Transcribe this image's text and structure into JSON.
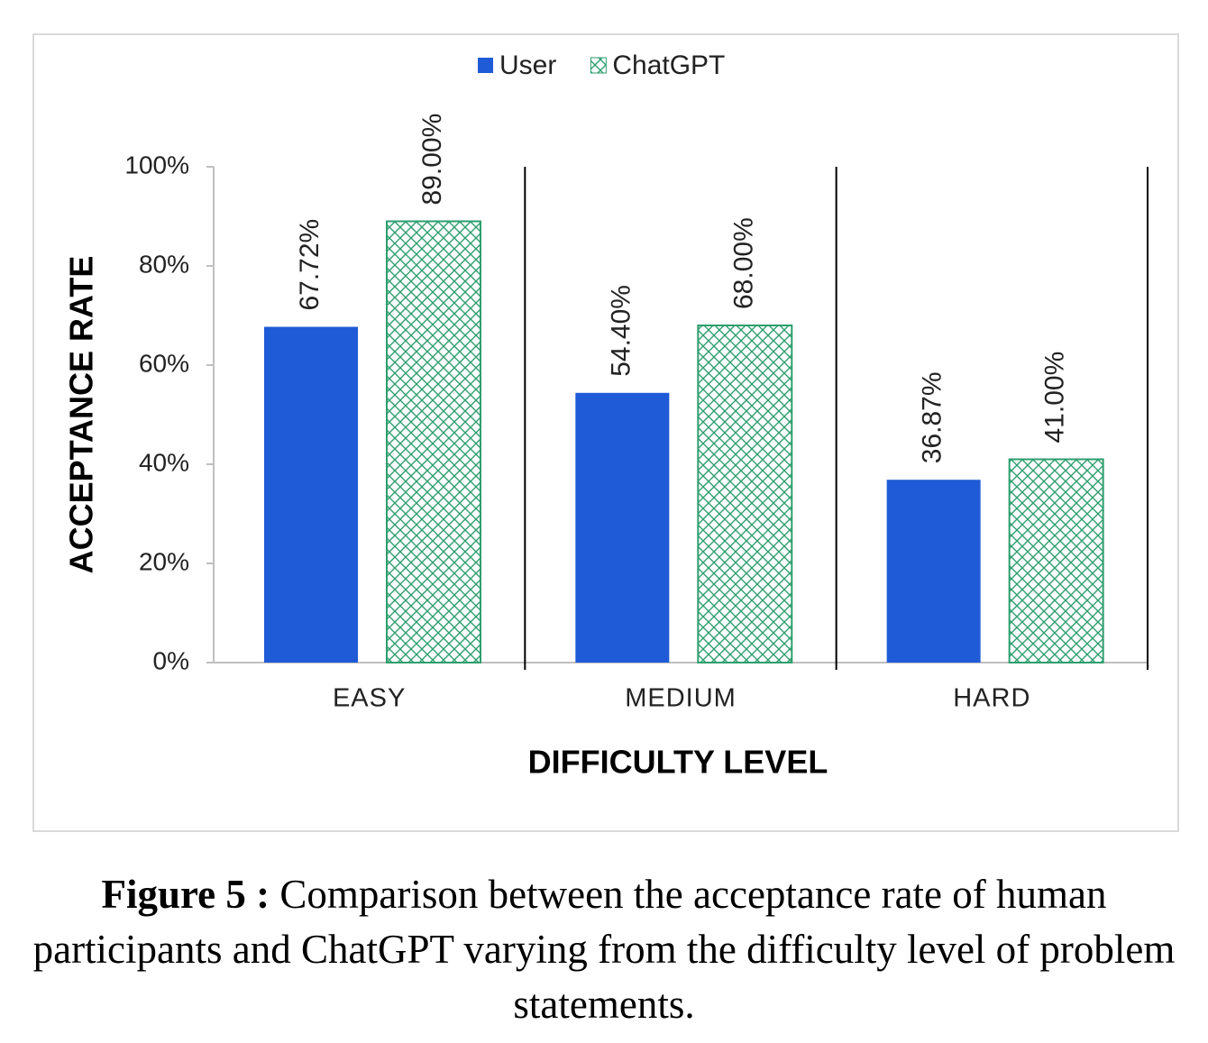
{
  "chart_data": {
    "type": "bar",
    "categories": [
      "EASY",
      "MEDIUM",
      "HARD"
    ],
    "series": [
      {
        "name": "User",
        "color": "#1f5bd6",
        "pattern": "solid",
        "values": [
          67.72,
          54.4,
          36.87
        ],
        "value_labels": [
          "67.72%",
          "54.40%",
          "36.87%"
        ]
      },
      {
        "name": "ChatGPT",
        "color": "#2e9e6e",
        "pattern": "crosshatch",
        "values": [
          89.0,
          68.0,
          41.0
        ],
        "value_labels": [
          "89.00%",
          "68.00%",
          "41.00%"
        ]
      }
    ],
    "ylim": [
      0,
      100
    ],
    "yticks": [
      {
        "value": 0,
        "label": "0%"
      },
      {
        "value": 20,
        "label": "20%"
      },
      {
        "value": 40,
        "label": "40%"
      },
      {
        "value": 60,
        "label": "60%"
      },
      {
        "value": 80,
        "label": "80%"
      },
      {
        "value": 100,
        "label": "100%"
      }
    ],
    "y_label": "ACCEPTANCE  RATE",
    "x_label": "DIFFICULTY LEVEL",
    "grid": false,
    "legend": "top"
  },
  "caption": {
    "label": "Figure 5 :",
    "text": "Comparison between the acceptance rate of human participants and ChatGPT varying from the difficulty level of problem statements."
  }
}
